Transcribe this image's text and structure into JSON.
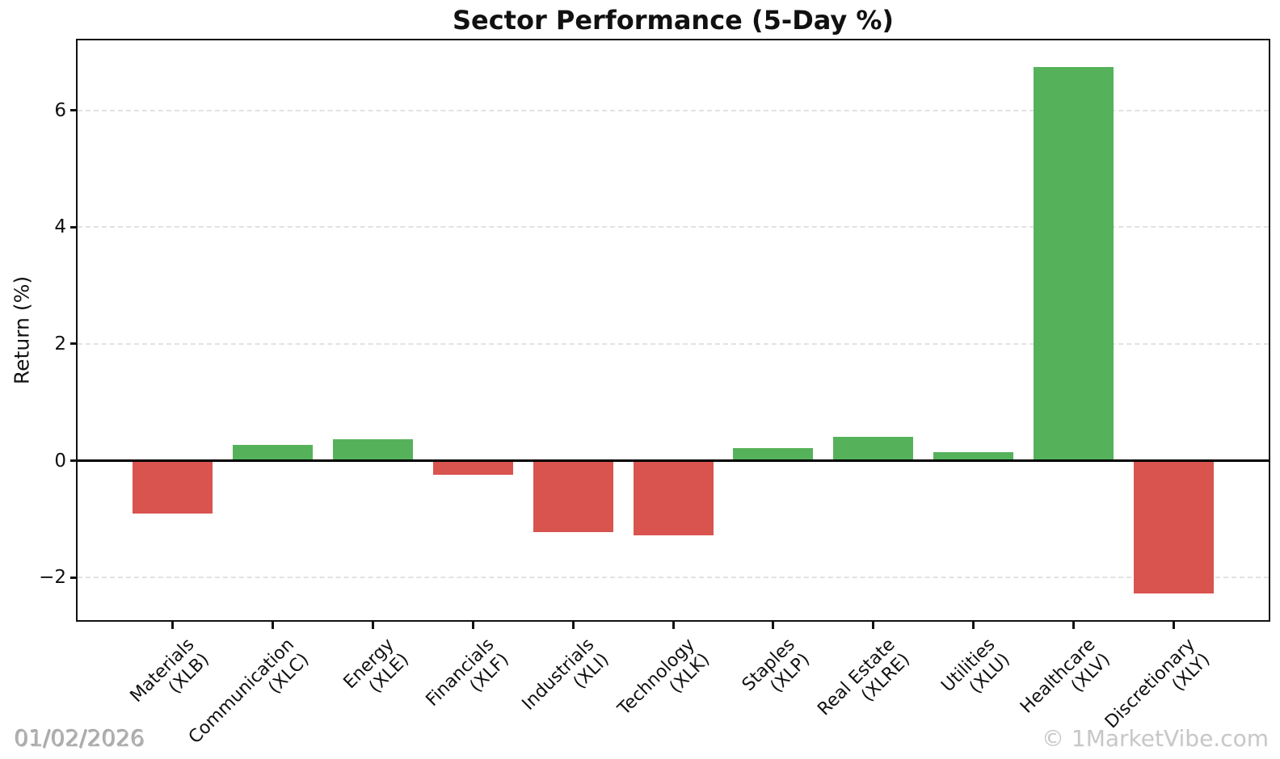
{
  "footer": {
    "date": "01/02/2026",
    "watermark": "© 1MarketVibe.com"
  },
  "chart_data": {
    "type": "bar",
    "title": "Sector Performance (5-Day %)",
    "xlabel": "",
    "ylabel": "Return (%)",
    "categories": [
      "Materials (XLB)",
      "Communication (XLC)",
      "Energy (XLE)",
      "Financials (XLF)",
      "Industrials (XLI)",
      "Technology (XLK)",
      "Staples (XLP)",
      "Real Estate (XLRE)",
      "Utilities (XLU)",
      "Healthcare (XLV)",
      "Discretionary (XLY)"
    ],
    "values": [
      -0.91,
      0.27,
      0.37,
      -0.24,
      -1.22,
      -1.28,
      0.22,
      0.41,
      0.14,
      6.74,
      -2.28
    ],
    "bars": [
      {
        "sector": "Materials",
        "ticker": "(XLB)",
        "value": -0.91
      },
      {
        "sector": "Communication",
        "ticker": "(XLC)",
        "value": 0.27
      },
      {
        "sector": "Energy",
        "ticker": "(XLE)",
        "value": 0.37
      },
      {
        "sector": "Financials",
        "ticker": "(XLF)",
        "value": -0.24
      },
      {
        "sector": "Industrials",
        "ticker": "(XLI)",
        "value": -1.22
      },
      {
        "sector": "Technology",
        "ticker": "(XLK)",
        "value": -1.28
      },
      {
        "sector": "Staples",
        "ticker": "(XLP)",
        "value": 0.22
      },
      {
        "sector": "Real Estate",
        "ticker": "(XLRE)",
        "value": 0.41
      },
      {
        "sector": "Utilities",
        "ticker": "(XLU)",
        "value": 0.14
      },
      {
        "sector": "Healthcare",
        "ticker": "(XLV)",
        "value": 6.74
      },
      {
        "sector": "Discretionary",
        "ticker": "(XLY)",
        "value": -2.28
      }
    ],
    "yticks": [
      -2,
      0,
      2,
      4,
      6
    ],
    "ylim": [
      -2.73,
      7.2
    ],
    "grid": "horizontal-dashed",
    "legend": "none",
    "positive_color": "#55b25a",
    "negative_color": "#d9534f"
  }
}
